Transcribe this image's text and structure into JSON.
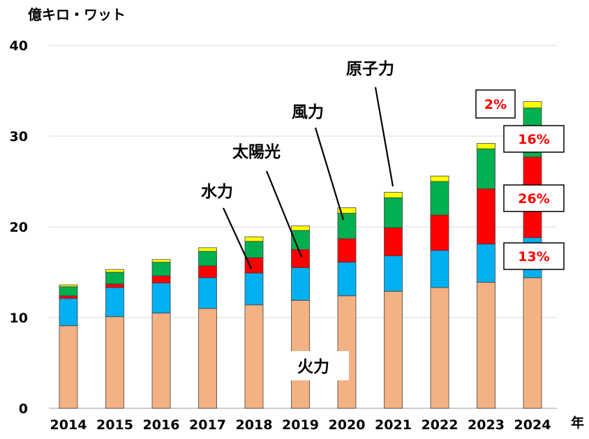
{
  "chart_data": {
    "type": "bar",
    "stacked": true,
    "title": "",
    "ylabel": "億キロ・ワット",
    "xlabel": "年",
    "ylim": [
      0,
      40
    ],
    "yticks": [
      0,
      10,
      20,
      30,
      40
    ],
    "categories": [
      "2014",
      "2015",
      "2016",
      "2017",
      "2018",
      "2019",
      "2020",
      "2021",
      "2022",
      "2023",
      "2024"
    ],
    "series": [
      {
        "name": "火力",
        "color": "#f4b183",
        "values": [
          9.1,
          10.1,
          10.5,
          11.0,
          11.4,
          11.9,
          12.4,
          12.9,
          13.3,
          13.9,
          14.4
        ]
      },
      {
        "name": "水力",
        "color": "#00b0f0",
        "values": [
          3.0,
          3.2,
          3.3,
          3.4,
          3.5,
          3.6,
          3.7,
          3.9,
          4.1,
          4.2,
          4.4
        ]
      },
      {
        "name": "太陽光",
        "color": "#ff0000",
        "values": [
          0.3,
          0.4,
          0.8,
          1.3,
          1.7,
          2.0,
          2.6,
          3.1,
          3.9,
          6.1,
          8.9
        ]
      },
      {
        "name": "風力",
        "color": "#00b050",
        "values": [
          1.0,
          1.3,
          1.5,
          1.6,
          1.8,
          2.1,
          2.8,
          3.3,
          3.7,
          4.4,
          5.4
        ]
      },
      {
        "name": "原子力",
        "color": "#ffff00",
        "values": [
          0.2,
          0.3,
          0.3,
          0.4,
          0.5,
          0.5,
          0.6,
          0.6,
          0.6,
          0.6,
          0.7
        ]
      }
    ],
    "annotations": {
      "kouryoku": "火力",
      "suiryoku": "水力",
      "taiyoukou": "太陽光",
      "furyoku": "風力",
      "genshiryoku": "原子力"
    },
    "share_2024": {
      "genshiryoku": "2%",
      "furyoku": "16%",
      "taiyoukou": "26%",
      "suiryoku": "13%"
    },
    "grid": true
  }
}
